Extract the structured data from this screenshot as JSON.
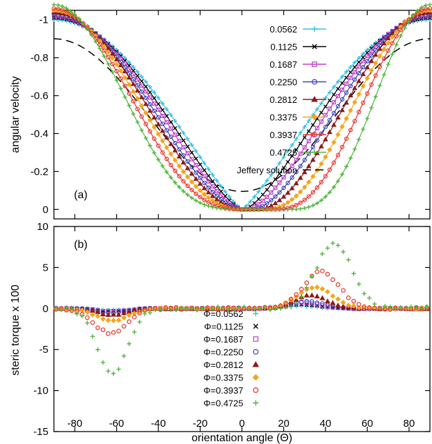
{
  "chart_data": [
    {
      "type": "line",
      "panel_label": "(a)",
      "xlabel": "",
      "ylabel": "angular velocity",
      "xlim": [
        -90,
        90
      ],
      "ylim": [
        0.05,
        -1.05
      ],
      "y_inverted": true,
      "x_ticks": [
        -80,
        -60,
        -40,
        -20,
        0,
        20,
        40,
        60,
        80
      ],
      "y_ticks": [
        0,
        -0.2,
        -0.4,
        -0.6,
        -0.8,
        -1
      ],
      "y_tick_labels": [
        "0",
        "-0.2",
        "-0.4",
        "-0.6",
        "-0.8",
        "-1"
      ],
      "x_tick_labels_shown": false,
      "legend_position": "top-right",
      "jeffery": {
        "name": "Jeffery solution",
        "color": "#000000",
        "a0": -0.5,
        "a1": -0.4,
        "dash": "11,7"
      },
      "series": [
        {
          "name": "0.0562",
          "color": "#33c2e2",
          "marker": "plus",
          "a0": -0.49,
          "a1": -0.49,
          "sharp": 1.2,
          "shift": 0,
          "peak": 1.0
        },
        {
          "name": "0.1125",
          "color": "#000000",
          "marker": "cross",
          "a0": -0.5,
          "a1": -0.5,
          "sharp": 1.35,
          "shift": 1.5,
          "peak": 1.01
        },
        {
          "name": "0.1687",
          "color": "#c03cc8",
          "marker": "square",
          "a0": -0.5,
          "a1": -0.5,
          "sharp": 1.5,
          "shift": 3,
          "peak": 1.02
        },
        {
          "name": "0.2250",
          "color": "#3a45b8",
          "marker": "circle",
          "a0": -0.51,
          "a1": -0.51,
          "sharp": 1.7,
          "shift": 5,
          "peak": 1.03
        },
        {
          "name": "0.2812",
          "color": "#8b1a1a",
          "marker": "triangle",
          "a0": -0.51,
          "a1": -0.51,
          "sharp": 1.9,
          "shift": 7.5,
          "peak": 1.04
        },
        {
          "name": "0.3375",
          "color": "#f3a51d",
          "marker": "diamond",
          "a0": -0.52,
          "a1": -0.52,
          "sharp": 2.2,
          "shift": 11,
          "peak": 1.05
        },
        {
          "name": "0.3937",
          "color": "#e8322b",
          "marker": "circle",
          "a0": -0.53,
          "a1": -0.53,
          "sharp": 2.6,
          "shift": 15,
          "peak": 1.06
        },
        {
          "name": "0.4725",
          "color": "#4fb63b",
          "marker": "plus",
          "a0": -0.54,
          "a1": -0.54,
          "sharp": 3.2,
          "shift": 21,
          "peak": 1.08
        }
      ]
    },
    {
      "type": "scatter",
      "panel_label": "(b)",
      "xlabel": "orientation angle (Θ)",
      "ylabel": "steric torque x 100",
      "xlim": [
        -90,
        90
      ],
      "ylim": [
        -15,
        10
      ],
      "x_ticks": [
        -80,
        -60,
        -40,
        -20,
        0,
        20,
        40,
        60,
        80
      ],
      "x_tick_labels": [
        "-80",
        "-60",
        "-40",
        "-20",
        "0",
        "20",
        "40",
        "60",
        "80"
      ],
      "y_ticks": [
        -15,
        -10,
        -5,
        0,
        5,
        10
      ],
      "y_tick_labels": [
        "-15",
        "-10",
        "-5",
        "0",
        "5",
        "10"
      ],
      "legend_position": "bottom-center",
      "series": [
        {
          "name": "Φ=0.0562",
          "color": "#33c2e2",
          "marker": "plus",
          "neg_amp": 0.2,
          "neg_center": -62,
          "neg_width": 10,
          "pos_amp": 0.3,
          "pos_center": 28,
          "pos_width": 10
        },
        {
          "name": "Φ=0.1125",
          "color": "#000000",
          "marker": "cross",
          "neg_amp": 0.3,
          "neg_center": -62,
          "neg_width": 10,
          "pos_amp": 0.5,
          "pos_center": 29,
          "pos_width": 10
        },
        {
          "name": "Φ=0.1687",
          "color": "#c03cc8",
          "marker": "square",
          "neg_amp": 0.4,
          "neg_center": -62,
          "neg_width": 10,
          "pos_amp": 0.7,
          "pos_center": 30,
          "pos_width": 11
        },
        {
          "name": "Φ=0.2250",
          "color": "#3a45b8",
          "marker": "circle",
          "neg_amp": 0.5,
          "neg_center": -62,
          "neg_width": 10,
          "pos_amp": 0.9,
          "pos_center": 31,
          "pos_width": 11
        },
        {
          "name": "Φ=0.2812",
          "color": "#8b1a1a",
          "marker": "triangle",
          "neg_amp": 0.8,
          "neg_center": -62,
          "neg_width": 10,
          "pos_amp": 1.6,
          "pos_center": 33,
          "pos_width": 11
        },
        {
          "name": "Φ=0.3375",
          "color": "#f3a51d",
          "marker": "diamond",
          "neg_amp": 1.5,
          "neg_center": -62,
          "neg_width": 11,
          "pos_amp": 2.6,
          "pos_center": 35,
          "pos_width": 12
        },
        {
          "name": "Φ=0.3937",
          "color": "#e8322b",
          "marker": "circle",
          "neg_amp": 3.0,
          "neg_center": -63,
          "neg_width": 11,
          "pos_amp": 4.5,
          "pos_center": 38,
          "pos_width": 12
        },
        {
          "name": "Φ=0.4725",
          "color": "#4fb63b",
          "marker": "plus",
          "neg_amp": 8.0,
          "neg_center": -62,
          "neg_width": 10,
          "pos_amp": 8.0,
          "pos_center": 44,
          "pos_width": 12
        }
      ]
    }
  ]
}
